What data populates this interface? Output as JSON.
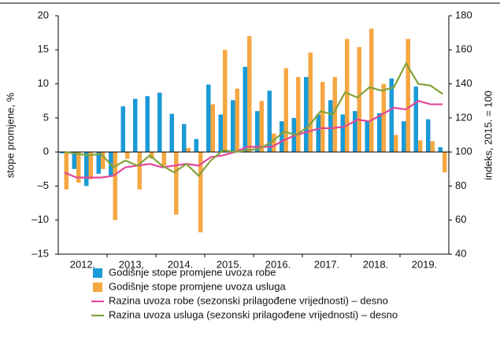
{
  "chart_data": {
    "type": "bar_line",
    "ylabel": "stope promjene, %",
    "y2label": "indeks, 2015. = 100",
    "years": [
      "2012.",
      "2013.",
      "2014.",
      "2015.",
      "2016.",
      "2017.",
      "2018.",
      "2019."
    ],
    "series": [
      {
        "name": "Godišnje stope promjene uvoza robe",
        "type": "bar",
        "color": "#1a9ad6",
        "values": [
          -0.2,
          -2.5,
          -5,
          -3.2,
          -3.5,
          6.7,
          7.8,
          8.2,
          8.7,
          5.6,
          4.1,
          1.9,
          9.9,
          5.5,
          7.6,
          12.5,
          6,
          9,
          4.5,
          5,
          11,
          5.5,
          7.6,
          5.5,
          6,
          4.6,
          5.7,
          10.8,
          4.5,
          9.6,
          4.8,
          0.7
        ]
      },
      {
        "name": "Godišnje stope promjene uvoza usluga",
        "type": "bar",
        "color": "#f5a742",
        "values": [
          -5.5,
          -4.5,
          -4,
          -2.5,
          -10,
          -1,
          -5.5,
          -1,
          -2,
          -9.2,
          0.6,
          -11.8,
          7,
          15,
          9.3,
          17,
          7.5,
          2.7,
          12.3,
          11,
          14.6,
          10.3,
          11,
          16.6,
          15.4,
          18.1,
          10,
          2.5,
          16.6,
          1.7,
          1.6,
          -3
        ]
      },
      {
        "name": "Razina uvoza robe (sezonski prilagođene vrijednosti) – desno",
        "type": "line",
        "axis": "y2",
        "color": "#e4479a",
        "values": [
          88,
          85,
          85,
          85,
          86,
          91,
          92,
          93,
          91,
          92,
          93,
          92,
          97,
          98,
          100,
          103,
          103,
          103,
          107,
          110,
          112,
          114,
          114,
          115,
          119,
          118,
          122,
          126,
          125,
          130,
          128,
          128
        ]
      },
      {
        "name": "Razina uvoza usluga (sezonski prilagođene vrijednosti) – desno",
        "type": "line",
        "axis": "y2",
        "color": "#84a23b",
        "values": [
          100,
          99,
          98,
          99,
          91,
          95,
          92,
          98,
          92,
          88,
          93,
          86,
          95,
          101,
          100,
          101,
          102,
          106,
          112,
          110,
          115,
          124,
          122,
          135,
          132,
          138,
          136,
          138,
          152,
          140,
          139,
          134
        ]
      }
    ],
    "ylim": [
      -15,
      20
    ],
    "yticks": [
      {
        "value": -15,
        "label": "–15"
      },
      {
        "value": -10,
        "label": "–10"
      },
      {
        "value": -5,
        "label": "–5"
      },
      0,
      5,
      10,
      15,
      20
    ],
    "y2lim": [
      40,
      180
    ],
    "y2ticks": [
      40,
      60,
      80,
      100,
      120,
      140,
      160,
      180
    ]
  }
}
